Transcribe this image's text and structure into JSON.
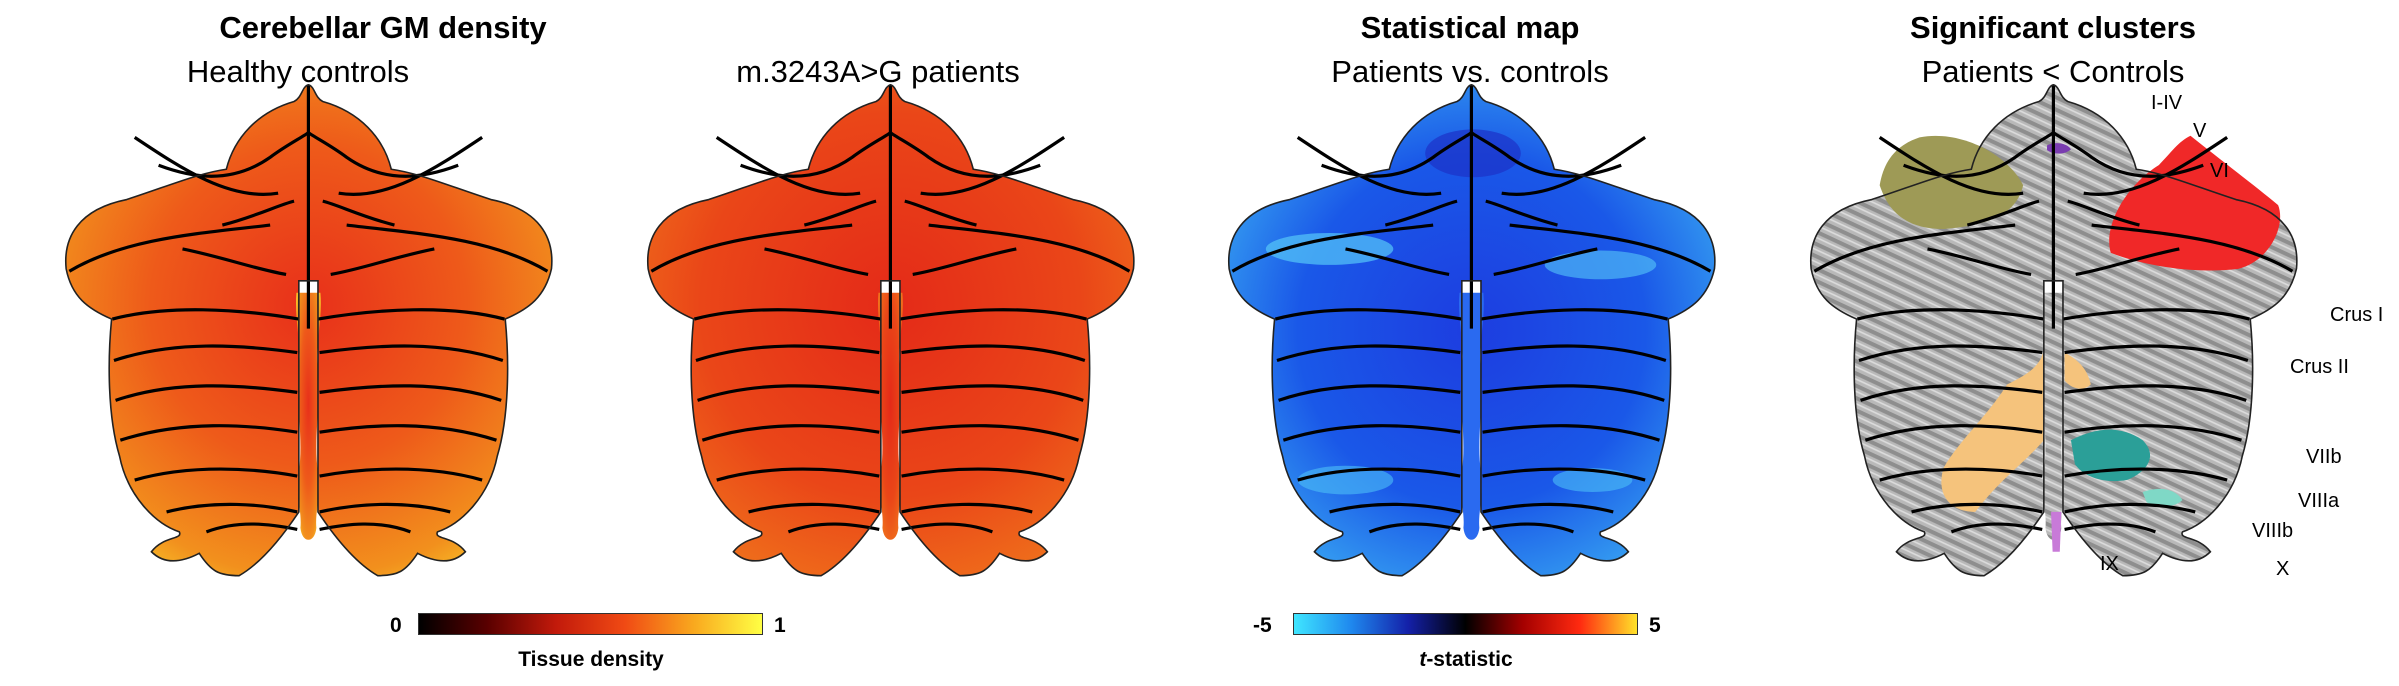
{
  "figure": {
    "group1": {
      "title": "Cerebellar GM density",
      "panels": [
        {
          "subtitle": "Healthy controls"
        },
        {
          "subtitle": "m.3243A>G patients"
        }
      ],
      "colorbar": {
        "min": "0",
        "max": "1",
        "label": "Tissue density",
        "colors": [
          "#000000",
          "#5a0000",
          "#c21a0b",
          "#f04a14",
          "#f9a81e",
          "#ffff44"
        ]
      }
    },
    "group2": {
      "title": "Statistical map",
      "subtitle": "Patients vs. controls",
      "colorbar": {
        "min": "-5",
        "max": "5",
        "label_italic": "t",
        "label_rest": "-statistic",
        "colors": [
          "#3fe6ff",
          "#1f88ee",
          "#1420a8",
          "#000000",
          "#a40000",
          "#ff2a10",
          "#ffe22a"
        ]
      }
    },
    "group3": {
      "title": "Significant clusters",
      "subtitle": "Patients < Controls",
      "lobule_labels": [
        "I-IV",
        "V",
        "VI",
        "Crus I",
        "Crus II",
        "VIIb",
        "VIIIa",
        "VIIIb",
        "IX",
        "X"
      ],
      "cluster_colors": [
        "#9e9a56",
        "#f02828",
        "#f5c37c",
        "#2b9f98",
        "#c87ad8",
        "#7a3db0"
      ]
    }
  }
}
